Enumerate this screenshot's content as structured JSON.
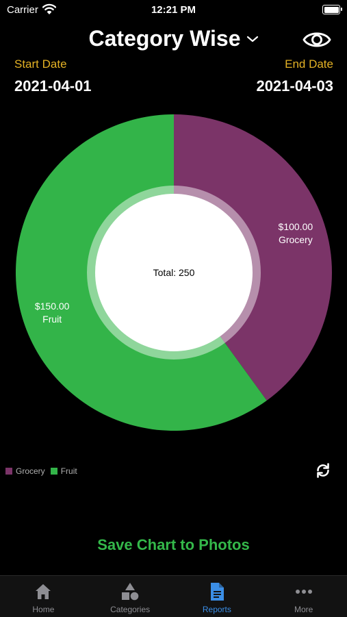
{
  "status_bar": {
    "carrier": "Carrier",
    "time": "12:21 PM"
  },
  "header": {
    "title": "Category Wise"
  },
  "dates": {
    "start_label": "Start Date",
    "start_value": "2021-04-01",
    "end_label": "End Date",
    "end_value": "2021-04-03"
  },
  "chart_data": {
    "type": "pie",
    "center_label": "Total: 250",
    "slices": [
      {
        "name": "Grocery",
        "value": 100,
        "label": "$100.00",
        "color": "#7b3468"
      },
      {
        "name": "Fruit",
        "value": 150,
        "label": "$150.00",
        "color": "#33b449"
      }
    ],
    "legend": [
      "Grocery",
      "Fruit"
    ],
    "legend_position": "bottom-left"
  },
  "actions": {
    "save_label": "Save Chart to Photos"
  },
  "tabs": [
    {
      "label": "Home",
      "icon": "house-icon"
    },
    {
      "label": "Categories",
      "icon": "shapes-icon"
    },
    {
      "label": "Reports",
      "icon": "document-icon"
    },
    {
      "label": "More",
      "icon": "ellipsis-icon"
    }
  ],
  "colors": {
    "accent": "#34b84a",
    "date_label": "#e4b225",
    "active_tab": "#3b8ee6"
  }
}
